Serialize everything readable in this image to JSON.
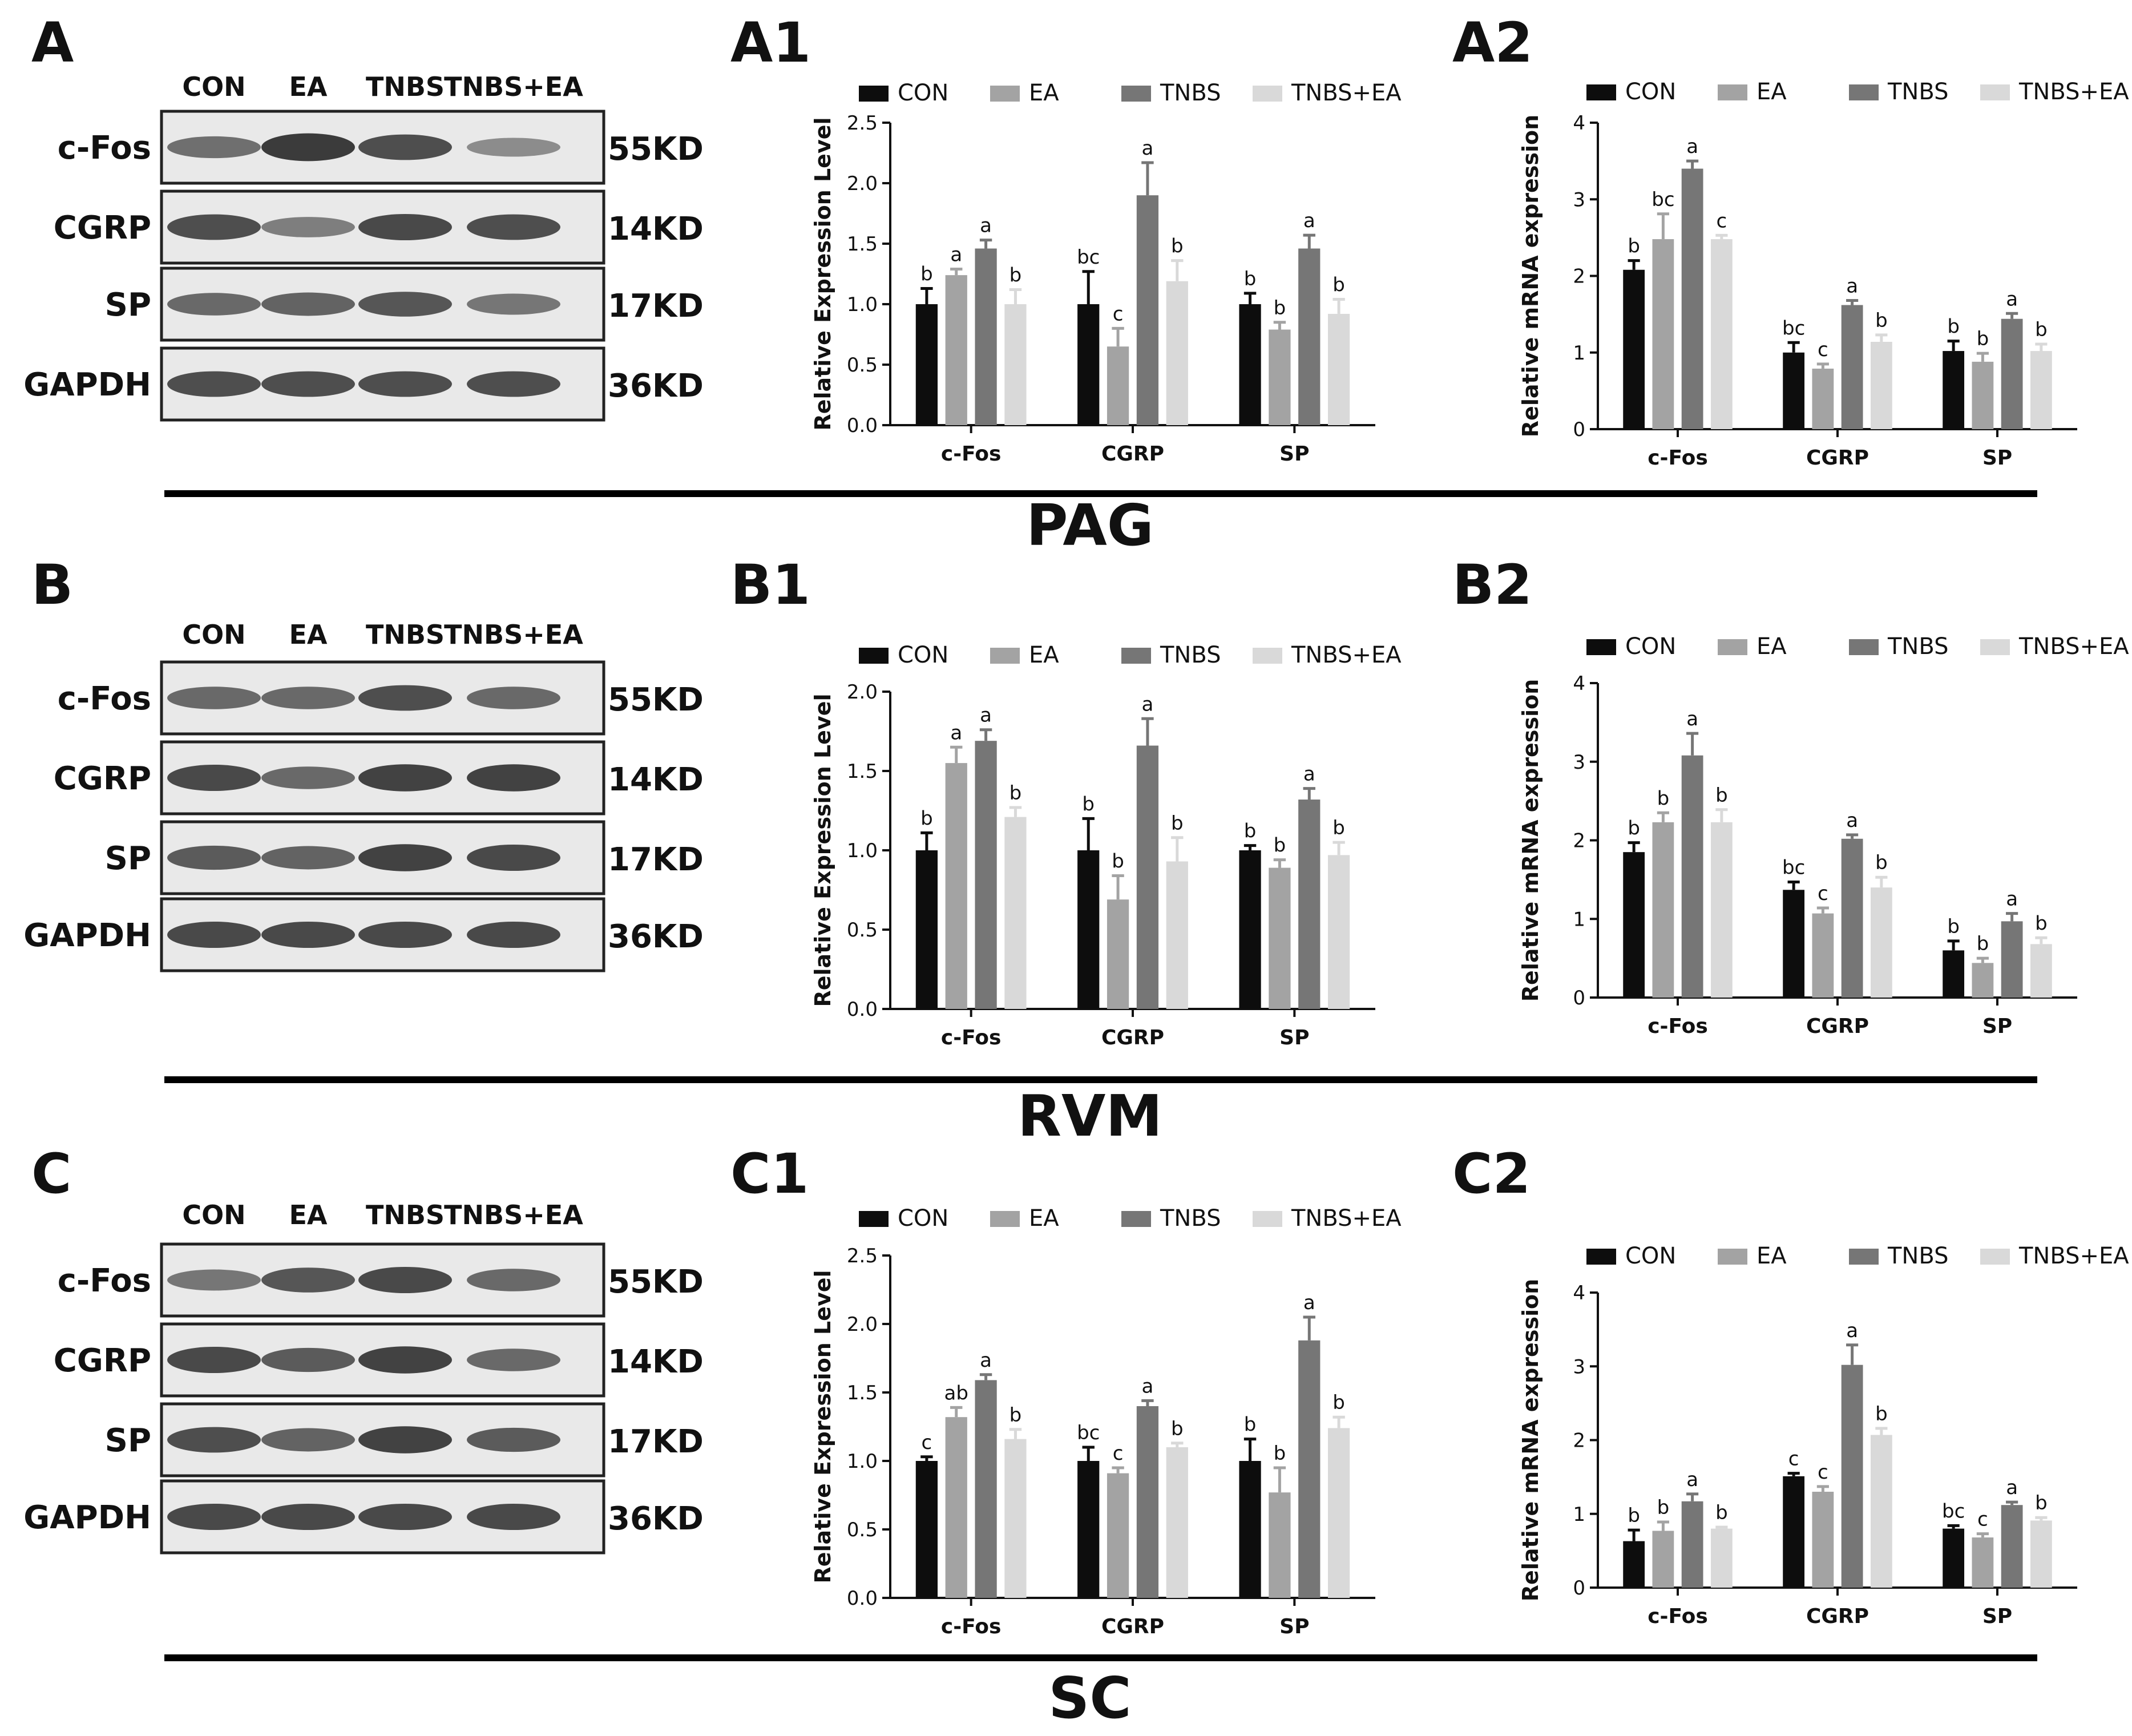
{
  "lane_labels": [
    "CON",
    "EA",
    "TNBS",
    "TNBS+EA"
  ],
  "colors": {
    "CON": "#0d0d0d",
    "EA": "#a3a3a3",
    "TNBS": "#767676",
    "TNBS+EA": "#d9d9d9"
  },
  "blot_style": {
    "background": "#e9e9e9",
    "band": "#2a2a2a"
  },
  "sections": [
    {
      "region": "PAG",
      "blot": {
        "panel": "A",
        "rows": [
          {
            "protein": "c-Fos",
            "kd": "55KD",
            "intensities": [
              0.55,
              0.95,
              0.8,
              0.35
            ]
          },
          {
            "protein": "CGRP",
            "kd": "14KD",
            "intensities": [
              0.8,
              0.45,
              0.85,
              0.8
            ]
          },
          {
            "protein": "SP",
            "kd": "17KD",
            "intensities": [
              0.6,
              0.65,
              0.75,
              0.5
            ]
          },
          {
            "protein": "GAPDH",
            "kd": "36KD",
            "intensities": [
              0.8,
              0.8,
              0.8,
              0.8
            ]
          }
        ]
      },
      "charts": [
        {
          "panel": "A1",
          "type": "bar",
          "ylabel": "Relative Expression Level",
          "categories": [
            "c-Fos",
            "CGRP",
            "SP"
          ],
          "ylim": [
            0,
            2.5
          ],
          "yticks": [
            0.0,
            0.5,
            1.0,
            1.5,
            2.0,
            2.5
          ],
          "decimals": 1,
          "series": [
            {
              "name": "CON",
              "values": [
                1.0,
                1.0,
                1.0
              ],
              "errors": [
                0.13,
                0.27,
                0.09
              ],
              "sig": [
                "b",
                "bc",
                "b"
              ]
            },
            {
              "name": "EA",
              "values": [
                1.24,
                0.65,
                0.79
              ],
              "errors": [
                0.05,
                0.15,
                0.06
              ],
              "sig": [
                "a",
                "c",
                "b"
              ]
            },
            {
              "name": "TNBS",
              "values": [
                1.46,
                1.9,
                1.46
              ],
              "errors": [
                0.07,
                0.27,
                0.11
              ],
              "sig": [
                "a",
                "a",
                "a"
              ]
            },
            {
              "name": "TNBS+EA",
              "values": [
                1.0,
                1.19,
                0.92
              ],
              "errors": [
                0.12,
                0.17,
                0.12
              ],
              "sig": [
                "b",
                "b",
                "b"
              ]
            }
          ]
        },
        {
          "panel": "A2",
          "type": "bar",
          "ylabel": "Relative mRNA expression",
          "categories": [
            "c-Fos",
            "CGRP",
            "SP"
          ],
          "ylim": [
            0,
            4
          ],
          "yticks": [
            0,
            1,
            2,
            3,
            4
          ],
          "decimals": 0,
          "series": [
            {
              "name": "CON",
              "values": [
                2.08,
                1.0,
                1.02
              ],
              "errors": [
                0.12,
                0.13,
                0.13
              ],
              "sig": [
                "b",
                "bc",
                "b"
              ]
            },
            {
              "name": "EA",
              "values": [
                2.48,
                0.79,
                0.88
              ],
              "errors": [
                0.33,
                0.06,
                0.11
              ],
              "sig": [
                "bc",
                "c",
                "b"
              ]
            },
            {
              "name": "TNBS",
              "values": [
                3.4,
                1.62,
                1.44
              ],
              "errors": [
                0.1,
                0.06,
                0.07
              ],
              "sig": [
                "a",
                "a",
                "a"
              ]
            },
            {
              "name": "TNBS+EA",
              "values": [
                2.48,
                1.14,
                1.02
              ],
              "errors": [
                0.05,
                0.09,
                0.09
              ],
              "sig": [
                "c",
                "b",
                "b"
              ]
            }
          ]
        }
      ]
    },
    {
      "region": "RVM",
      "blot": {
        "panel": "B",
        "rows": [
          {
            "protein": "c-Fos",
            "kd": "55KD",
            "intensities": [
              0.6,
              0.6,
              0.8,
              0.6
            ]
          },
          {
            "protein": "CGRP",
            "kd": "14KD",
            "intensities": [
              0.85,
              0.6,
              0.9,
              0.9
            ]
          },
          {
            "protein": "SP",
            "kd": "17KD",
            "intensities": [
              0.7,
              0.65,
              0.9,
              0.85
            ]
          },
          {
            "protein": "GAPDH",
            "kd": "36KD",
            "intensities": [
              0.85,
              0.85,
              0.85,
              0.85
            ]
          }
        ]
      },
      "charts": [
        {
          "panel": "B1",
          "type": "bar",
          "ylabel": "Relative Expression Level",
          "categories": [
            "c-Fos",
            "CGRP",
            "SP"
          ],
          "ylim": [
            0,
            2.0
          ],
          "yticks": [
            0.0,
            0.5,
            1.0,
            1.5,
            2.0
          ],
          "decimals": 1,
          "series": [
            {
              "name": "CON",
              "values": [
                1.0,
                1.0,
                1.0
              ],
              "errors": [
                0.11,
                0.2,
                0.03
              ],
              "sig": [
                "b",
                "b",
                "b"
              ]
            },
            {
              "name": "EA",
              "values": [
                1.55,
                0.69,
                0.89
              ],
              "errors": [
                0.1,
                0.15,
                0.05
              ],
              "sig": [
                "a",
                "b",
                "b"
              ]
            },
            {
              "name": "TNBS",
              "values": [
                1.69,
                1.66,
                1.32
              ],
              "errors": [
                0.07,
                0.17,
                0.07
              ],
              "sig": [
                "a",
                "a",
                "a"
              ]
            },
            {
              "name": "TNBS+EA",
              "values": [
                1.21,
                0.93,
                0.97
              ],
              "errors": [
                0.06,
                0.15,
                0.08
              ],
              "sig": [
                "b",
                "b",
                "b"
              ]
            }
          ]
        },
        {
          "panel": "B2",
          "type": "bar",
          "ylabel": "Relative mRNA expression",
          "categories": [
            "c-Fos",
            "CGRP",
            "SP"
          ],
          "ylim": [
            0,
            4
          ],
          "yticks": [
            0,
            1,
            2,
            3,
            4
          ],
          "decimals": 0,
          "series": [
            {
              "name": "CON",
              "values": [
                1.85,
                1.37,
                0.6
              ],
              "errors": [
                0.12,
                0.1,
                0.12
              ],
              "sig": [
                "b",
                "bc",
                "b"
              ]
            },
            {
              "name": "EA",
              "values": [
                2.23,
                1.07,
                0.44
              ],
              "errors": [
                0.12,
                0.07,
                0.06
              ],
              "sig": [
                "b",
                "c",
                "b"
              ]
            },
            {
              "name": "TNBS",
              "values": [
                3.08,
                2.02,
                0.97
              ],
              "errors": [
                0.28,
                0.05,
                0.1
              ],
              "sig": [
                "a",
                "a",
                "a"
              ]
            },
            {
              "name": "TNBS+EA",
              "values": [
                2.23,
                1.4,
                0.68
              ],
              "errors": [
                0.16,
                0.13,
                0.08
              ],
              "sig": [
                "b",
                "b",
                "b"
              ]
            }
          ]
        }
      ]
    },
    {
      "region": "SC",
      "blot": {
        "panel": "C",
        "rows": [
          {
            "protein": "c-Fos",
            "kd": "55KD",
            "intensities": [
              0.5,
              0.75,
              0.85,
              0.6
            ]
          },
          {
            "protein": "CGRP",
            "kd": "14KD",
            "intensities": [
              0.85,
              0.7,
              0.9,
              0.6
            ]
          },
          {
            "protein": "SP",
            "kd": "17KD",
            "intensities": [
              0.8,
              0.65,
              0.9,
              0.7
            ]
          },
          {
            "protein": "GAPDH",
            "kd": "36KD",
            "intensities": [
              0.85,
              0.85,
              0.85,
              0.85
            ]
          }
        ]
      },
      "charts": [
        {
          "panel": "C1",
          "type": "bar",
          "ylabel": "Relative Expression Level",
          "categories": [
            "c-Fos",
            "CGRP",
            "SP"
          ],
          "ylim": [
            0,
            2.5
          ],
          "yticks": [
            0.0,
            0.5,
            1.0,
            1.5,
            2.0,
            2.5
          ],
          "decimals": 1,
          "series": [
            {
              "name": "CON",
              "values": [
                1.0,
                1.0,
                1.0
              ],
              "errors": [
                0.03,
                0.1,
                0.16
              ],
              "sig": [
                "c",
                "bc",
                "b"
              ]
            },
            {
              "name": "EA",
              "values": [
                1.32,
                0.91,
                0.77
              ],
              "errors": [
                0.07,
                0.04,
                0.18
              ],
              "sig": [
                "ab",
                "c",
                "b"
              ]
            },
            {
              "name": "TNBS",
              "values": [
                1.59,
                1.4,
                1.88
              ],
              "errors": [
                0.04,
                0.04,
                0.17
              ],
              "sig": [
                "a",
                "a",
                "a"
              ]
            },
            {
              "name": "TNBS+EA",
              "values": [
                1.16,
                1.1,
                1.24
              ],
              "errors": [
                0.07,
                0.03,
                0.08
              ],
              "sig": [
                "b",
                "b",
                "b"
              ]
            }
          ]
        },
        {
          "panel": "C2",
          "type": "bar",
          "ylabel": "Relative mRNA expression",
          "categories": [
            "c-Fos",
            "CGRP",
            "SP"
          ],
          "ylim": [
            0,
            4
          ],
          "yticks": [
            0,
            1,
            2,
            3,
            4
          ],
          "decimals": 0,
          "series": [
            {
              "name": "CON",
              "values": [
                0.63,
                1.51,
                0.8
              ],
              "errors": [
                0.15,
                0.04,
                0.04
              ],
              "sig": [
                "b",
                "c",
                "bc"
              ]
            },
            {
              "name": "EA",
              "values": [
                0.77,
                1.3,
                0.68
              ],
              "errors": [
                0.12,
                0.07,
                0.05
              ],
              "sig": [
                "b",
                "c",
                "c"
              ]
            },
            {
              "name": "TNBS",
              "values": [
                1.17,
                3.02,
                1.12
              ],
              "errors": [
                0.1,
                0.27,
                0.04
              ],
              "sig": [
                "a",
                "a",
                "a"
              ]
            },
            {
              "name": "TNBS+EA",
              "values": [
                0.8,
                2.07,
                0.91
              ],
              "errors": [
                0.02,
                0.09,
                0.04
              ],
              "sig": [
                "b",
                "b",
                "b"
              ]
            }
          ]
        }
      ]
    }
  ]
}
